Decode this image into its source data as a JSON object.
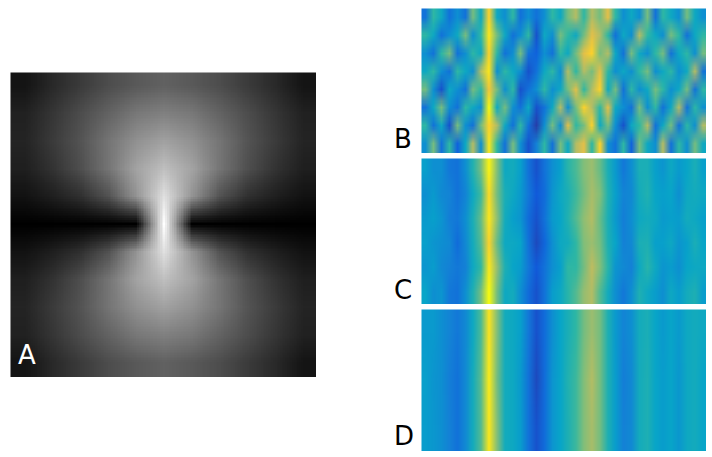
{
  "chart_data": [
    {
      "type": "heatmap",
      "panel": "A",
      "color": "gray",
      "tick_labels": false,
      "zlim": [
        0,
        1
      ],
      "cells": [
        [
          0.08,
          0.16,
          0.23,
          0.3,
          0.35,
          0.38,
          0.35,
          0.3,
          0.23,
          0.16,
          0.08
        ],
        [
          0.13,
          0.21,
          0.3,
          0.39,
          0.47,
          0.5,
          0.47,
          0.39,
          0.3,
          0.21,
          0.13
        ],
        [
          0.14,
          0.23,
          0.33,
          0.46,
          0.57,
          0.63,
          0.57,
          0.46,
          0.33,
          0.23,
          0.14
        ],
        [
          0.12,
          0.2,
          0.31,
          0.46,
          0.64,
          0.75,
          0.64,
          0.46,
          0.31,
          0.2,
          0.12
        ],
        [
          0.07,
          0.12,
          0.19,
          0.32,
          0.58,
          0.88,
          0.58,
          0.32,
          0.19,
          0.12,
          0.07
        ],
        [
          0,
          0,
          0,
          0,
          0,
          1,
          0,
          0,
          0,
          0,
          0
        ],
        [
          0.07,
          0.12,
          0.19,
          0.32,
          0.58,
          0.88,
          0.58,
          0.32,
          0.19,
          0.12,
          0.07
        ],
        [
          0.12,
          0.2,
          0.31,
          0.46,
          0.64,
          0.75,
          0.64,
          0.46,
          0.31,
          0.2,
          0.12
        ],
        [
          0.14,
          0.23,
          0.33,
          0.46,
          0.57,
          0.63,
          0.57,
          0.46,
          0.33,
          0.23,
          0.14
        ],
        [
          0.13,
          0.21,
          0.3,
          0.39,
          0.47,
          0.5,
          0.47,
          0.39,
          0.3,
          0.21,
          0.13
        ],
        [
          0.08,
          0.16,
          0.23,
          0.3,
          0.35,
          0.38,
          0.35,
          0.3,
          0.23,
          0.16,
          0.08
        ]
      ]
    },
    {
      "type": "heatmap",
      "panel": "B",
      "color": "parula",
      "tick_labels": false,
      "zlim": [
        0,
        1
      ],
      "cells": [
        [
          0.3,
          0.6,
          0.2,
          0.5,
          0.15,
          0.4,
          0.7,
          0.3,
          0.95,
          0.5,
          0.2,
          0.6,
          0.3,
          0.1,
          0.25,
          0.5,
          0.2,
          0.6,
          0.4,
          0.7,
          0.8,
          0.5,
          0.9,
          0.3,
          0.2,
          0.5,
          0.15,
          0.6,
          0.4,
          0.3,
          0.7,
          0.2,
          0.5,
          0.3,
          0.6,
          0.4
        ],
        [
          0.5,
          0.2,
          0.4,
          0.1,
          0.6,
          0.3,
          0.2,
          0.6,
          0.9,
          0.7,
          0.4,
          0.2,
          0.5,
          0.2,
          0.05,
          0.3,
          0.6,
          0.3,
          0.8,
          0.5,
          0.6,
          0.9,
          0.4,
          0.6,
          0.3,
          0.1,
          0.4,
          0.5,
          0.7,
          0.2,
          0.4,
          0.6,
          0.2,
          0.5,
          0.3,
          0.7
        ],
        [
          0.2,
          0.4,
          0.6,
          0.3,
          0.2,
          0.5,
          0.4,
          0.3,
          1,
          0.4,
          0.6,
          0.3,
          0.2,
          0.4,
          0.1,
          0.2,
          0.4,
          0.7,
          0.3,
          0.6,
          0.9,
          0.7,
          0.5,
          0.8,
          0.4,
          0.3,
          0.2,
          0.6,
          0.3,
          0.5,
          0.2,
          0.4,
          0.7,
          0.2,
          0.5,
          0.3
        ],
        [
          0.6,
          0.3,
          0.1,
          0.4,
          0.3,
          0.2,
          0.6,
          0.5,
          0.85,
          0.6,
          0.3,
          0.5,
          0.1,
          0.2,
          0.3,
          0.5,
          0.3,
          0.4,
          0.6,
          0.8,
          0.5,
          0.7,
          0.9,
          0.4,
          0.6,
          0.2,
          0.5,
          0.3,
          0.4,
          0.6,
          0.5,
          0.3,
          0.4,
          0.6,
          0.2,
          0.5
        ],
        [
          0.4,
          0.5,
          0.3,
          0.2,
          0.5,
          0.4,
          0.3,
          0.7,
          0.95,
          0.3,
          0.5,
          0.4,
          0.3,
          0.1,
          0.2,
          0.4,
          0.5,
          0.3,
          0.7,
          0.5,
          0.7,
          0.6,
          0.8,
          0.5,
          0.3,
          0.4,
          0.3,
          0.5,
          0.6,
          0.3,
          0.4,
          0.5,
          0.3,
          0.4,
          0.7,
          0.2
        ],
        [
          0.3,
          0.2,
          0.5,
          0.6,
          0.2,
          0.3,
          0.5,
          0.4,
          0.9,
          0.5,
          0.2,
          0.3,
          0.6,
          0.2,
          0.15,
          0.3,
          0.2,
          0.5,
          0.4,
          0.6,
          0.8,
          0.9,
          0.6,
          0.7,
          0.4,
          0.2,
          0.6,
          0.4,
          0.3,
          0.5,
          0.6,
          0.2,
          0.4,
          0.5,
          0.3,
          0.6
        ],
        [
          0.5,
          0.4,
          0.2,
          0.3,
          0.4,
          0.6,
          0.3,
          0.5,
          0.95,
          0.6,
          0.4,
          0.2,
          0.3,
          0.5,
          0.1,
          0.4,
          0.3,
          0.6,
          0.5,
          0.4,
          0.6,
          0.8,
          0.7,
          0.5,
          0.2,
          0.4,
          0.3,
          0.7,
          0.5,
          0.4,
          0.3,
          0.6,
          0.5,
          0.2,
          0.4,
          0.5
        ],
        [
          0.2,
          0.5,
          0.4,
          0.2,
          0.3,
          0.2,
          0.6,
          0.4,
          0.9,
          0.4,
          0.3,
          0.5,
          0.2,
          0.3,
          0.2,
          0.3,
          0.5,
          0.4,
          0.6,
          0.7,
          0.5,
          0.7,
          0.6,
          0.8,
          0.5,
          0.3,
          0.4,
          0.3,
          0.6,
          0.2,
          0.5,
          0.4,
          0.3,
          0.6,
          0.4,
          0.3
        ]
      ]
    },
    {
      "type": "heatmap",
      "panel": "C",
      "color": "parula",
      "tick_labels": false,
      "zlim": [
        0,
        1
      ],
      "cells": [
        [
          0.38,
          0.3,
          0.32,
          0.22,
          0.2,
          0.3,
          0.45,
          0.6,
          1,
          0.6,
          0.4,
          0.42,
          0.3,
          0.18,
          0.1,
          0.2,
          0.35,
          0.4,
          0.48,
          0.55,
          0.65,
          0.7,
          0.55,
          0.42,
          0.3,
          0.22,
          0.3,
          0.45,
          0.4,
          0.35,
          0.3,
          0.4,
          0.35,
          0.42,
          0.45,
          0.35
        ],
        [
          0.32,
          0.35,
          0.28,
          0.25,
          0.22,
          0.25,
          0.4,
          0.5,
          0.95,
          0.65,
          0.45,
          0.38,
          0.35,
          0.22,
          0.12,
          0.2,
          0.3,
          0.36,
          0.5,
          0.5,
          0.6,
          0.72,
          0.62,
          0.48,
          0.32,
          0.28,
          0.25,
          0.4,
          0.48,
          0.4,
          0.32,
          0.35,
          0.3,
          0.38,
          0.4,
          0.4
        ],
        [
          0.36,
          0.32,
          0.3,
          0.28,
          0.18,
          0.28,
          0.42,
          0.55,
          0.9,
          0.58,
          0.4,
          0.4,
          0.38,
          0.2,
          0.08,
          0.16,
          0.3,
          0.4,
          0.42,
          0.5,
          0.62,
          0.66,
          0.6,
          0.45,
          0.38,
          0.25,
          0.28,
          0.44,
          0.45,
          0.36,
          0.36,
          0.4,
          0.32,
          0.36,
          0.44,
          0.38
        ],
        [
          0.34,
          0.36,
          0.32,
          0.24,
          0.22,
          0.3,
          0.44,
          0.58,
          0.95,
          0.64,
          0.42,
          0.36,
          0.32,
          0.18,
          0.1,
          0.2,
          0.34,
          0.38,
          0.46,
          0.55,
          0.64,
          0.7,
          0.58,
          0.44,
          0.34,
          0.24,
          0.3,
          0.4,
          0.42,
          0.4,
          0.34,
          0.36,
          0.35,
          0.42,
          0.4,
          0.36
        ],
        [
          0.3,
          0.34,
          0.28,
          0.26,
          0.2,
          0.26,
          0.4,
          0.52,
          0.92,
          0.6,
          0.44,
          0.4,
          0.34,
          0.22,
          0.12,
          0.18,
          0.32,
          0.4,
          0.44,
          0.52,
          0.6,
          0.68,
          0.62,
          0.46,
          0.36,
          0.26,
          0.28,
          0.42,
          0.46,
          0.38,
          0.36,
          0.38,
          0.3,
          0.4,
          0.42,
          0.4
        ],
        [
          0.36,
          0.3,
          0.3,
          0.22,
          0.2,
          0.3,
          0.46,
          0.6,
          0.98,
          0.62,
          0.4,
          0.42,
          0.36,
          0.2,
          0.1,
          0.2,
          0.3,
          0.36,
          0.48,
          0.54,
          0.62,
          0.66,
          0.58,
          0.44,
          0.34,
          0.22,
          0.3,
          0.44,
          0.44,
          0.36,
          0.32,
          0.4,
          0.34,
          0.38,
          0.44,
          0.36
        ]
      ]
    },
    {
      "type": "heatmap",
      "panel": "D",
      "color": "parula",
      "tick_labels": false,
      "zlim": [
        0,
        1
      ],
      "cells": [
        [
          0.35,
          0.33,
          0.3,
          0.25,
          0.2,
          0.28,
          0.42,
          0.55,
          0.95,
          0.62,
          0.42,
          0.4,
          0.35,
          0.2,
          0.1,
          0.18,
          0.32,
          0.38,
          0.45,
          0.52,
          0.62,
          0.68,
          0.6,
          0.45,
          0.35,
          0.25,
          0.28,
          0.42,
          0.45,
          0.38,
          0.35,
          0.38,
          0.33,
          0.4,
          0.42,
          0.38
        ],
        [
          0.36,
          0.32,
          0.3,
          0.24,
          0.2,
          0.28,
          0.42,
          0.56,
          0.96,
          0.6,
          0.42,
          0.4,
          0.34,
          0.2,
          0.08,
          0.18,
          0.32,
          0.38,
          0.46,
          0.52,
          0.62,
          0.7,
          0.6,
          0.45,
          0.35,
          0.24,
          0.28,
          0.42,
          0.45,
          0.38,
          0.35,
          0.38,
          0.33,
          0.4,
          0.42,
          0.38
        ],
        [
          0.34,
          0.34,
          0.3,
          0.26,
          0.22,
          0.28,
          0.4,
          0.54,
          0.94,
          0.62,
          0.42,
          0.4,
          0.36,
          0.22,
          0.1,
          0.18,
          0.3,
          0.38,
          0.44,
          0.5,
          0.6,
          0.66,
          0.6,
          0.45,
          0.34,
          0.26,
          0.3,
          0.42,
          0.44,
          0.38,
          0.34,
          0.38,
          0.34,
          0.4,
          0.42,
          0.4
        ]
      ]
    }
  ]
}
